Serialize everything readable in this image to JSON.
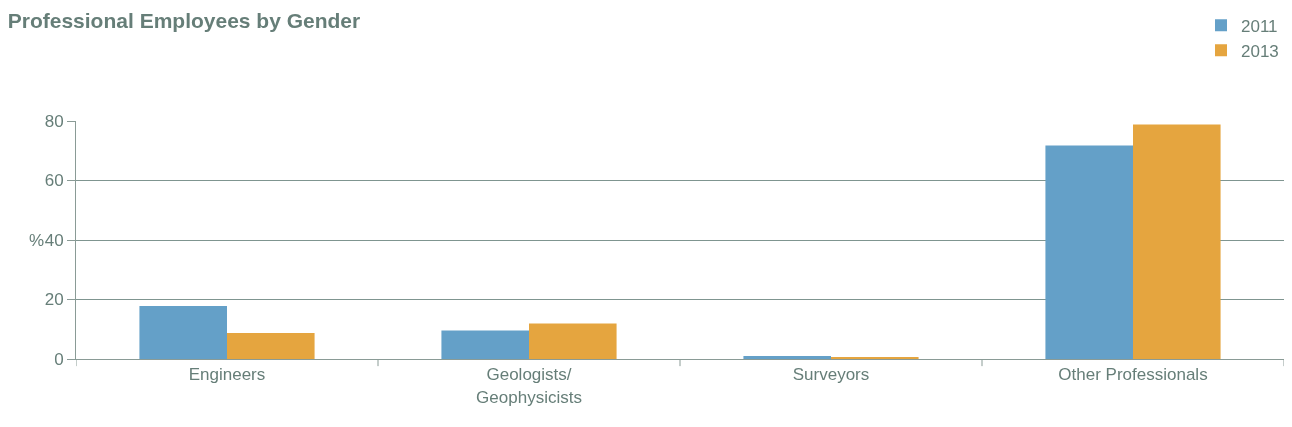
{
  "chart_data": {
    "type": "bar",
    "title": "Professional Employees by Gender",
    "ylabel": "%",
    "categories": [
      "Engineers",
      "Geologists/\nGeophysicists",
      "Surveyors",
      "Other Professionals"
    ],
    "series": [
      {
        "name": "2011",
        "color": "#64a0c8",
        "values": [
          17.8,
          9.6,
          1.0,
          71.8
        ]
      },
      {
        "name": "2013",
        "color": "#e5a53f",
        "values": [
          8.7,
          11.9,
          0.6,
          78.8
        ]
      }
    ],
    "ylim": [
      0,
      80
    ],
    "yticks": [
      0,
      20,
      40,
      60,
      80
    ],
    "grid": "y",
    "legend": "top right"
  }
}
